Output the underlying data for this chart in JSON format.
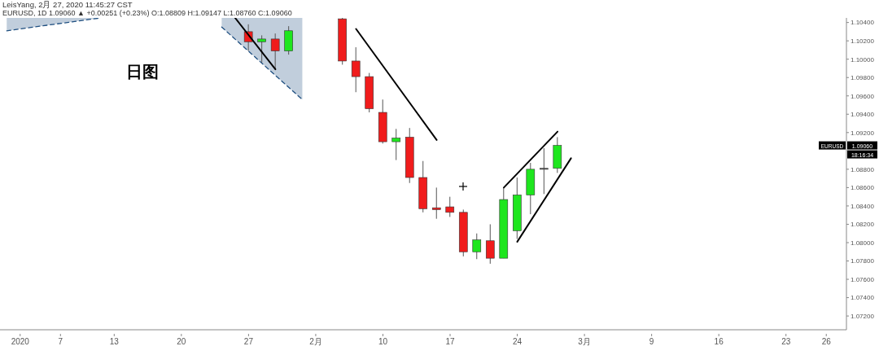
{
  "chart_data": {
    "type": "candlestick",
    "title": "LeisYang, 2月 27, 2020 11:45:27 CST",
    "subtitle": "EURUSD, 1D 1.09060 ▲ +0.00251 (+0.23%) O:1.08809 H:1.09147 L:1.08760 C:1.09060",
    "categories": [
      null,
      "2020",
      null,
      null,
      "7",
      null,
      null,
      null,
      "13",
      null,
      null,
      null,
      null,
      "20",
      null,
      null,
      null,
      null,
      "27",
      null,
      null,
      null,
      null,
      "2月",
      null,
      null,
      null,
      null,
      "10",
      null,
      null,
      null,
      null,
      "17",
      null,
      null,
      null,
      null,
      "24",
      null,
      null,
      null,
      null,
      "3月",
      null,
      null,
      null,
      null,
      "9",
      null,
      null,
      null,
      null,
      "16",
      null,
      null,
      null,
      null,
      "23",
      null,
      null,
      "26",
      null
    ],
    "ylim": [
      1.0705,
      1.1045
    ],
    "yticks": [
      {
        "value": 1.072,
        "label": "1.07200"
      },
      {
        "value": 1.074,
        "label": "1.07400"
      },
      {
        "value": 1.076,
        "label": "1.07600"
      },
      {
        "value": 1.078,
        "label": "1.07800"
      },
      {
        "value": 1.08,
        "label": "1.08000"
      },
      {
        "value": 1.082,
        "label": "1.08200"
      },
      {
        "value": 1.084,
        "label": "1.08400"
      },
      {
        "value": 1.086,
        "label": "1.08600"
      },
      {
        "value": 1.088,
        "label": "1.08800"
      },
      {
        "value": 1.092,
        "label": "1.09200"
      },
      {
        "value": 1.094,
        "label": "1.09400"
      },
      {
        "value": 1.096,
        "label": "1.09600"
      },
      {
        "value": 1.098,
        "label": "1.09800"
      },
      {
        "value": 1.1,
        "label": "1.10000"
      },
      {
        "value": 1.102,
        "label": "1.10200"
      },
      {
        "value": 1.104,
        "label": "1.10400"
      }
    ],
    "series": [
      {
        "type": "line",
        "color": "#1f4f80",
        "line_style": "dashed",
        "values": [
          1.1031,
          null,
          null,
          null,
          null,
          null,
          null,
          1.1045,
          null,
          null,
          null,
          null,
          null,
          null,
          null,
          null,
          null,
          null,
          null,
          null,
          null,
          null,
          null,
          null,
          null,
          null,
          null,
          null,
          null,
          null,
          null,
          null,
          null,
          null,
          null,
          null,
          null,
          null,
          null,
          null,
          null,
          null,
          null,
          null,
          null,
          null,
          null,
          null,
          null,
          null,
          null,
          null,
          null,
          null,
          null,
          null,
          null,
          null,
          null,
          null,
          null,
          null,
          null
        ],
        "lower": [
          1.1031,
          null,
          null,
          null,
          null,
          null,
          null,
          1.1045,
          null,
          null,
          null,
          null,
          null,
          null,
          null,
          null,
          null,
          null,
          null,
          null,
          null,
          null,
          null,
          null,
          null,
          null,
          null,
          null,
          null,
          null,
          null,
          null,
          null,
          null,
          null,
          null,
          null,
          null,
          null,
          null,
          null,
          null,
          null,
          null,
          null,
          null,
          null,
          null,
          null,
          null,
          null,
          null,
          null,
          null,
          null,
          null,
          null,
          null,
          null,
          null,
          null,
          null,
          null
        ],
        "upper": [
          1.1045,
          null,
          null,
          null,
          null,
          null,
          null,
          1.1045,
          null,
          null,
          null,
          null,
          null,
          null,
          null,
          null,
          null,
          null,
          null,
          null,
          null,
          null,
          null,
          null,
          null,
          null,
          null,
          null,
          null,
          null,
          null,
          null,
          null,
          null,
          null,
          null,
          null,
          null,
          null,
          null,
          null,
          null,
          null,
          null,
          null,
          null,
          null,
          null,
          null,
          null,
          null,
          null,
          null,
          null,
          null,
          null,
          null,
          null,
          null,
          null,
          null,
          null,
          null
        ]
      },
      {
        "type": "line",
        "color": "#1f4f80",
        "line_style": "dashed",
        "values": [
          null,
          null,
          null,
          null,
          null,
          null,
          null,
          null,
          null,
          null,
          null,
          null,
          null,
          null,
          null,
          null,
          1.1035,
          null,
          null,
          null,
          null,
          null,
          1.0956,
          null,
          null,
          null,
          null,
          null,
          null,
          null,
          null,
          null,
          null,
          null,
          null,
          null,
          null,
          null,
          null,
          null,
          null,
          null,
          null,
          null,
          null,
          null,
          null,
          null,
          null,
          null,
          null,
          null,
          null,
          null,
          null,
          null,
          null,
          null,
          null,
          null,
          null,
          null,
          null
        ],
        "lower": [
          null,
          null,
          null,
          null,
          null,
          null,
          null,
          null,
          null,
          null,
          null,
          null,
          null,
          null,
          null,
          null,
          1.1035,
          null,
          null,
          null,
          null,
          null,
          1.0956,
          null,
          null,
          null,
          null,
          null,
          null,
          null,
          null,
          null,
          null,
          null,
          null,
          null,
          null,
          null,
          null,
          null,
          null,
          null,
          null,
          null,
          null,
          null,
          null,
          null,
          null,
          null,
          null,
          null,
          null,
          null,
          null,
          null,
          null,
          null,
          null,
          null,
          null,
          null,
          null
        ],
        "upper": [
          null,
          null,
          null,
          null,
          null,
          null,
          null,
          null,
          null,
          null,
          null,
          null,
          null,
          null,
          null,
          null,
          1.1045,
          null,
          null,
          null,
          null,
          null,
          1.1045,
          null,
          null,
          null,
          null,
          null,
          null,
          null,
          null,
          null,
          null,
          null,
          null,
          null,
          null,
          null,
          null,
          null,
          null,
          null,
          null,
          null,
          null,
          null,
          null,
          null,
          null,
          null,
          null,
          null,
          null,
          null,
          null,
          null,
          null,
          null,
          null,
          null,
          null,
          null,
          null
        ]
      },
      {
        "type": "line",
        "color": "#000000",
        "line_style": "solid",
        "values": [
          null,
          null,
          null,
          null,
          null,
          null,
          null,
          null,
          null,
          null,
          null,
          null,
          null,
          null,
          null,
          null,
          null,
          1.1045,
          null,
          null,
          1.0989,
          null,
          null,
          null,
          null,
          null,
          null,
          null,
          null,
          null,
          null,
          null,
          null,
          null,
          null,
          null,
          null,
          null,
          null,
          null,
          null,
          null,
          null,
          null,
          null,
          null,
          null,
          null,
          null,
          null,
          null,
          null,
          null,
          null,
          null,
          null,
          null,
          null,
          null,
          null,
          null,
          null,
          null
        ]
      },
      {
        "type": "line",
        "color": "#000000",
        "line_style": "solid",
        "values": [
          null,
          null,
          null,
          null,
          null,
          null,
          null,
          null,
          null,
          null,
          null,
          null,
          null,
          null,
          null,
          null,
          null,
          null,
          null,
          null,
          null,
          null,
          null,
          null,
          null,
          null,
          1.1033,
          null,
          null,
          null,
          null,
          null,
          1.0912,
          null,
          null,
          null,
          null,
          null,
          null,
          null,
          null,
          null,
          null,
          null,
          null,
          null,
          null,
          null,
          null,
          null,
          null,
          null,
          null,
          null,
          null,
          null,
          null,
          null,
          null,
          null,
          null,
          null,
          null
        ]
      },
      {
        "type": "line",
        "color": "#000000",
        "line_style": "solid",
        "values": [
          null,
          null,
          null,
          null,
          null,
          null,
          null,
          null,
          null,
          null,
          null,
          null,
          null,
          null,
          null,
          null,
          null,
          null,
          null,
          null,
          null,
          null,
          null,
          null,
          null,
          null,
          null,
          null,
          null,
          null,
          null,
          null,
          null,
          null,
          null,
          null,
          null,
          1.086,
          null,
          null,
          null,
          1.0921,
          null,
          null,
          null,
          null,
          null,
          null,
          null,
          null,
          null,
          null,
          null,
          null,
          null,
          null,
          null,
          null,
          null,
          null,
          null,
          null,
          null
        ]
      },
      {
        "type": "line",
        "color": "#000000",
        "line_style": "solid",
        "values": [
          null,
          null,
          null,
          null,
          null,
          null,
          null,
          null,
          null,
          null,
          null,
          null,
          null,
          null,
          null,
          null,
          null,
          null,
          null,
          null,
          null,
          null,
          null,
          null,
          null,
          null,
          null,
          null,
          null,
          null,
          null,
          null,
          null,
          null,
          null,
          null,
          null,
          null,
          1.0801,
          null,
          null,
          null,
          1.0892,
          null,
          null,
          null,
          null,
          null,
          null,
          null,
          null,
          null,
          null,
          null,
          null,
          null,
          null,
          null,
          null,
          null,
          null,
          null,
          null
        ]
      },
      {
        "ohlc": [
          null,
          null,
          null,
          null,
          null,
          null,
          null,
          null,
          null,
          null,
          null,
          null,
          null,
          null,
          null,
          null,
          null,
          null,
          [
            1.103,
            1.1038,
            1.1009,
            1.1019
          ],
          [
            1.1019,
            1.1026,
            1.0996,
            1.1022
          ],
          [
            1.1022,
            1.1028,
            1.0989,
            1.1009
          ],
          [
            1.1009,
            1.1036,
            1.1005,
            1.1031
          ],
          null,
          null,
          null,
          [
            1.1044,
            1.1045,
            1.0994,
            1.0998
          ],
          [
            1.0998,
            1.1013,
            1.0964,
            1.0981
          ],
          [
            1.0981,
            1.0985,
            1.0942,
            1.0946
          ],
          [
            1.0942,
            1.0956,
            1.0908,
            1.091
          ],
          [
            1.091,
            1.0924,
            1.089,
            1.0914
          ],
          [
            1.0915,
            1.0925,
            1.0865,
            1.0871
          ],
          [
            1.0871,
            1.0889,
            1.0833,
            1.0837
          ],
          [
            1.0838,
            1.086,
            1.0826,
            1.0836
          ],
          [
            1.0839,
            1.085,
            1.0828,
            1.0833
          ],
          [
            1.0833,
            1.0836,
            1.0785,
            1.079
          ],
          [
            1.079,
            1.081,
            1.0782,
            1.0803
          ],
          [
            1.0802,
            1.082,
            1.0777,
            1.0783
          ],
          [
            1.0783,
            1.086,
            1.0783,
            1.0847
          ],
          [
            1.0813,
            1.0871,
            1.0804,
            1.0852
          ],
          [
            1.0852,
            1.0887,
            1.0831,
            1.088
          ],
          [
            1.088,
            1.0903,
            1.0853,
            1.0881
          ],
          [
            1.0881,
            1.0915,
            1.0876,
            1.0906
          ],
          null,
          null,
          null,
          null,
          null,
          null,
          null,
          null,
          null,
          null,
          null,
          null,
          null,
          null,
          null,
          null,
          null,
          null,
          null,
          null,
          null
        ],
        "colors": [
          null,
          null,
          null,
          null,
          null,
          null,
          null,
          null,
          null,
          null,
          null,
          null,
          null,
          null,
          null,
          null,
          null,
          null,
          "#f01c1c",
          "#1ee61e",
          "#f01c1c",
          "#1ee61e",
          null,
          null,
          null,
          "#f01c1c",
          "#f01c1c",
          "#f01c1c",
          "#f01c1c",
          "#1ee61e",
          "#f01c1c",
          "#f01c1c",
          "#f01c1c",
          "#f01c1c",
          "#f01c1c",
          "#1ee61e",
          "#f01c1c",
          "#1ee61e",
          "#1ee61e",
          "#1ee61e",
          "#555555",
          "#1ee61e",
          null,
          null,
          null,
          null,
          null,
          null,
          null,
          null,
          null,
          null,
          null,
          null,
          null,
          null,
          null,
          null,
          null,
          null,
          null,
          null,
          null
        ]
      }
    ],
    "annotations": [
      "日图",
      {
        "text": "EURUSD",
        "y": 1.0906
      },
      "1.09060",
      "18:16:34"
    ],
    "grid": false,
    "legend": false
  }
}
